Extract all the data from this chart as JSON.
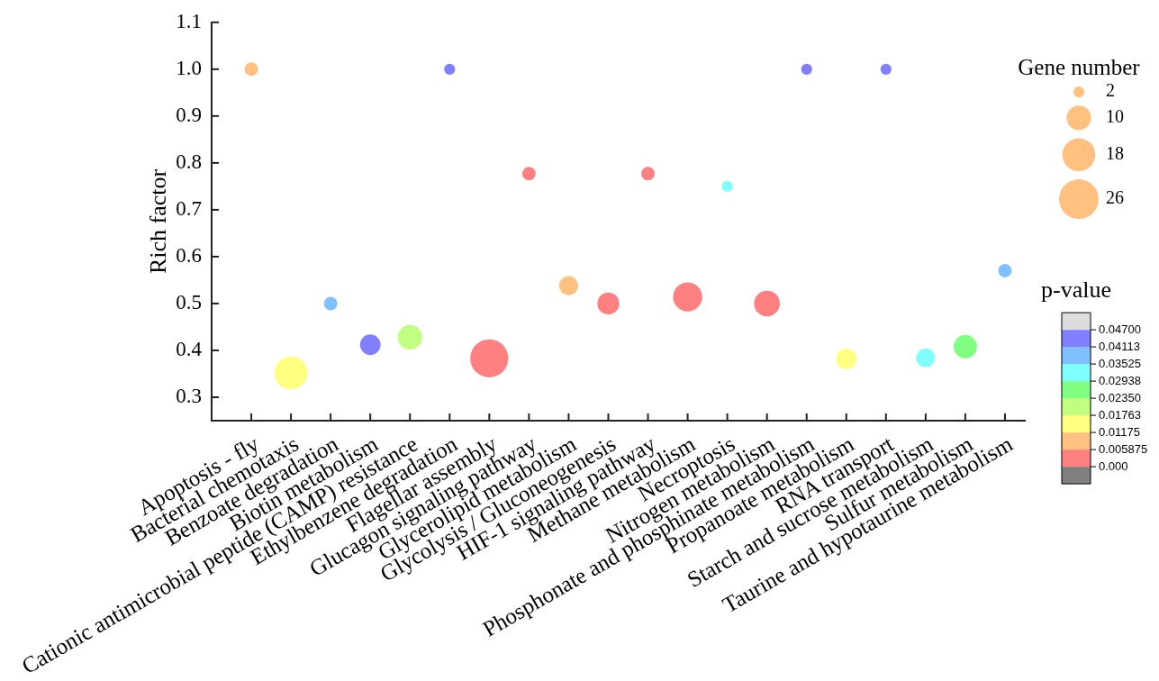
{
  "chart_data": {
    "type": "bubble",
    "ylabel": "Rich factor",
    "legend_title": "Gene number",
    "clabel": "p-value",
    "categories": [
      "Apoptosis - fly",
      "Bacterial chemotaxis",
      "Benzoate degradation",
      "Biotin metabolism",
      "Cationic antimicrobial peptide (CAMP) resistance",
      "Ethylbenzene degradation",
      "Flagellar assembly",
      "Glucagon signaling pathway",
      "Glycerolipid metabolism",
      "Glycolysis / Gluconeogenesis",
      "HIF-1 signaling pathway",
      "Methane metabolism",
      "Necroptosis",
      "Nitrogen metabolism",
      "Phosphonate and phosphinate metabolism",
      "Propanoate metabolism",
      "RNA transport",
      "Starch and sucrose metabolism",
      "Sulfur metabolism",
      "Taurine and hypotaurine metabolism"
    ],
    "values": [
      1.0,
      0.352,
      0.5,
      0.412,
      0.428,
      1.0,
      0.383,
      0.777,
      0.538,
      0.5,
      0.777,
      0.514,
      0.75,
      0.5,
      1.0,
      0.382,
      1.0,
      0.384,
      0.408,
      0.57
    ],
    "sizes": [
      3,
      18,
      3,
      7,
      10,
      2,
      24,
      3,
      6,
      8,
      3,
      14,
      2,
      11,
      2,
      7,
      2,
      6,
      9,
      3
    ],
    "cvalues": [
      0.009,
      0.015,
      0.038,
      0.044,
      0.021,
      0.044,
      0.003,
      0.003,
      0.009,
      0.003,
      0.003,
      0.003,
      0.032,
      0.003,
      0.044,
      0.015,
      0.044,
      0.032,
      0.026,
      0.038
    ],
    "ylim": [
      0.25,
      1.1
    ],
    "yticks": [
      0.3,
      0.4,
      0.5,
      0.6,
      0.7,
      0.8,
      0.9,
      {
        "value": 1,
        "label": "1.0"
      },
      1.1
    ],
    "size_legend": [
      2,
      10,
      18,
      26
    ],
    "clim": [
      -0.005875,
      0.052875
    ],
    "cticks": [
      {
        "value": 0,
        "label": "0.000"
      },
      0.005875,
      0.01175,
      0.01763,
      {
        "value": 0.0235,
        "label": "0.02350"
      },
      0.02938,
      0.03525,
      0.04113,
      {
        "value": 0.047,
        "label": "0.04700"
      }
    ]
  }
}
